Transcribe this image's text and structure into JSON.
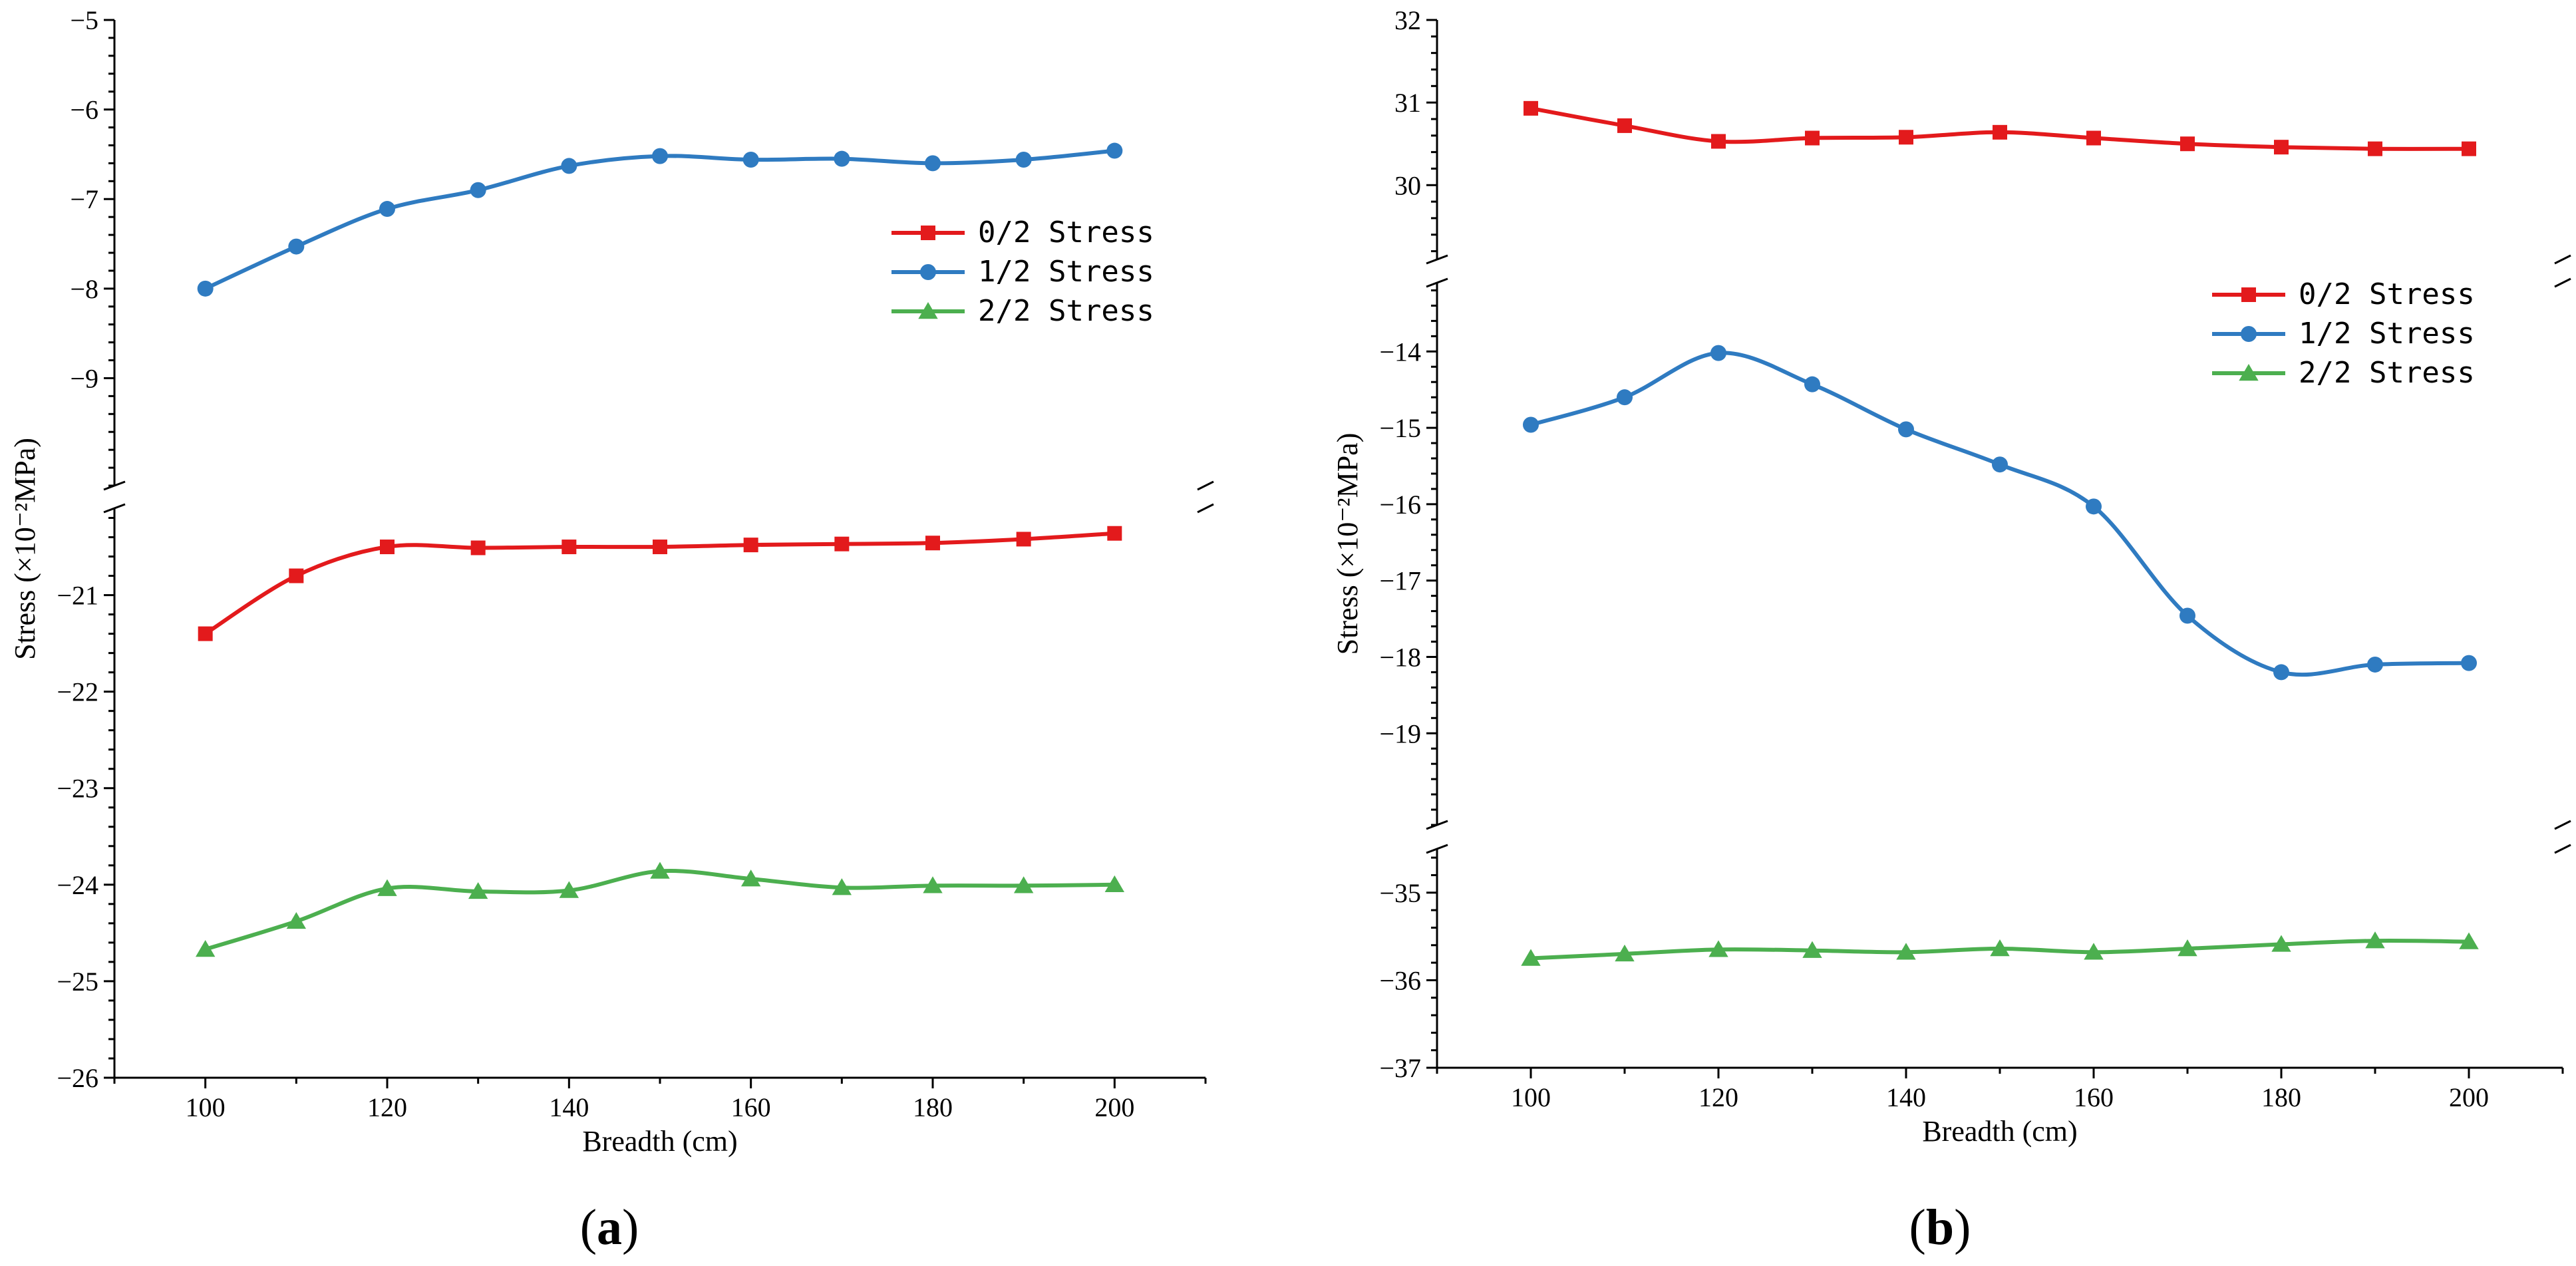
{
  "chart_data": [
    {
      "type": "line",
      "panel_label": "a",
      "xlabel": "Breadth (cm)",
      "ylabel": "Stress (×10⁻²MPa)",
      "x": [
        100,
        110,
        120,
        130,
        140,
        150,
        160,
        170,
        180,
        190,
        200
      ],
      "xlim": [
        90,
        210
      ],
      "x_ticks": [
        100,
        120,
        140,
        160,
        180,
        200
      ],
      "y_segments": [
        {
          "range": [
            -26,
            -20.1
          ],
          "ticks": [
            -26,
            -25,
            -24,
            -23,
            -22,
            -21
          ]
        },
        {
          "range": [
            -10.2,
            -5
          ],
          "ticks": [
            -9,
            -8,
            -7,
            -6,
            -5
          ]
        }
      ],
      "legend": {
        "position": "upper-right"
      },
      "series": [
        {
          "name": "0/2 Stress",
          "color": "#e31a1c",
          "marker": "square",
          "values": [
            -21.4,
            -20.8,
            -20.5,
            -20.51,
            -20.5,
            -20.5,
            -20.48,
            -20.47,
            -20.46,
            -20.42,
            -20.36
          ]
        },
        {
          "name": "1/2 Stress",
          "color": "#2f7bc1",
          "marker": "circle",
          "values": [
            -8.0,
            -7.53,
            -7.11,
            -6.9,
            -6.63,
            -6.52,
            -6.56,
            -6.55,
            -6.6,
            -6.56,
            -6.46
          ]
        },
        {
          "name": "2/2 Stress",
          "color": "#4caf4f",
          "marker": "triangle",
          "values": [
            -24.67,
            -24.38,
            -24.04,
            -24.07,
            -24.06,
            -23.86,
            -23.94,
            -24.03,
            -24.01,
            -24.01,
            -24.0
          ]
        }
      ]
    },
    {
      "type": "line",
      "panel_label": "b",
      "xlabel": "Breadth (cm)",
      "ylabel": "Stress (×10⁻²MPa)",
      "x": [
        100,
        110,
        120,
        130,
        140,
        150,
        160,
        170,
        180,
        190,
        200
      ],
      "xlim": [
        90,
        210
      ],
      "x_ticks": [
        100,
        120,
        140,
        160,
        180,
        200
      ],
      "y_segments": [
        {
          "range": [
            -37,
            -34.5
          ],
          "ticks": [
            -37,
            -36,
            -35
          ]
        },
        {
          "range": [
            -20.2,
            -13.1
          ],
          "ticks": [
            -19,
            -18,
            -17,
            -16,
            -15,
            -14
          ]
        },
        {
          "range": [
            29.1,
            32
          ],
          "ticks": [
            30,
            31,
            32
          ]
        }
      ],
      "legend": {
        "position": "upper-right"
      },
      "series": [
        {
          "name": "0/2 Stress",
          "color": "#e31a1c",
          "marker": "square",
          "values": [
            30.93,
            30.72,
            30.53,
            30.57,
            30.58,
            30.64,
            30.57,
            30.5,
            30.46,
            30.44,
            30.44
          ]
        },
        {
          "name": "1/2 Stress",
          "color": "#2f7bc1",
          "marker": "circle",
          "values": [
            -14.96,
            -14.6,
            -14.02,
            -14.43,
            -15.02,
            -15.48,
            -16.03,
            -17.46,
            -18.2,
            -18.1,
            -18.08
          ]
        },
        {
          "name": "2/2 Stress",
          "color": "#4caf4f",
          "marker": "triangle",
          "values": [
            -35.75,
            -35.7,
            -35.65,
            -35.66,
            -35.68,
            -35.64,
            -35.68,
            -35.64,
            -35.59,
            -35.55,
            -35.56
          ]
        }
      ]
    }
  ]
}
